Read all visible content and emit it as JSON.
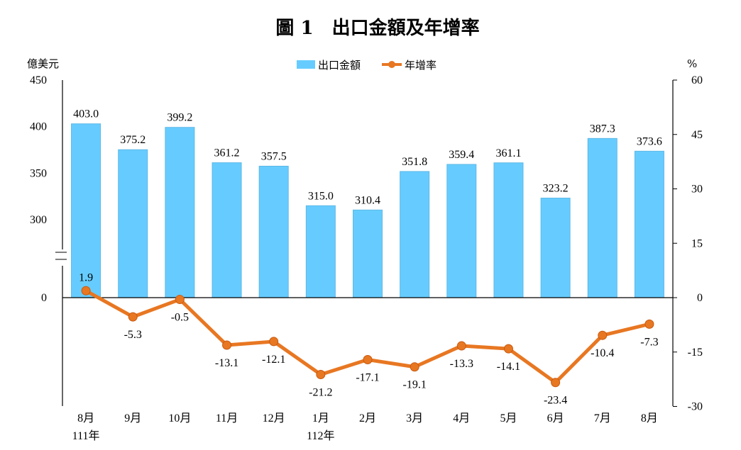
{
  "title": "圖 1　出口金額及年增率",
  "left_unit": "億美元",
  "right_unit": "%",
  "colors": {
    "bar": "#66CCFF",
    "bar_stroke": "#5DB8E6",
    "line": "#E87722",
    "axis": "#000000"
  },
  "chart_data": {
    "type": "bar+line",
    "title": "圖 1　出口金額及年增率",
    "categories": [
      "8月",
      "9月",
      "10月",
      "11月",
      "12月",
      "1月",
      "2月",
      "3月",
      "4月",
      "5月",
      "6月",
      "7月",
      "8月"
    ],
    "category_sublabels": [
      "111年",
      "",
      "",
      "",
      "",
      "112年",
      "",
      "",
      "",
      "",
      "",
      "",
      ""
    ],
    "series": [
      {
        "name": "出口金額",
        "type": "bar",
        "axis": "left",
        "values": [
          403.0,
          375.2,
          399.2,
          361.2,
          357.5,
          315.0,
          310.4,
          351.8,
          359.4,
          361.1,
          323.2,
          387.3,
          373.6
        ],
        "labels": [
          "403.0",
          "375.2",
          "399.2",
          "361.2",
          "357.5",
          "315.0",
          "310.4",
          "351.8",
          "359.4",
          "361.1",
          "323.2",
          "387.3",
          "373.6"
        ]
      },
      {
        "name": "年增率",
        "type": "line",
        "axis": "right",
        "values": [
          1.9,
          -5.3,
          -0.5,
          -13.1,
          -12.1,
          -21.2,
          -17.1,
          -19.1,
          -13.3,
          -14.1,
          -23.4,
          -10.4,
          -7.3
        ],
        "labels": [
          "1.9",
          "-5.3",
          "-0.5",
          "-13.1",
          "-12.1",
          "-21.2",
          "-17.1",
          "-19.1",
          "-13.3",
          "-14.1",
          "-23.4",
          "-10.4",
          "-7.3"
        ]
      }
    ],
    "left_axis": {
      "ticks": [
        0,
        300,
        350,
        400,
        450
      ],
      "tick_labels": [
        "0",
        "300",
        "350",
        "400",
        "450"
      ],
      "broken": true,
      "break_between": [
        0,
        300
      ]
    },
    "right_axis": {
      "ylim": [
        -30,
        60
      ],
      "ticks": [
        -30,
        -15,
        0,
        15,
        30,
        45,
        60
      ],
      "tick_labels": [
        "-30",
        "-15",
        "0",
        "15",
        "30",
        "45",
        "60"
      ]
    },
    "legend": {
      "position": "top-center",
      "entries": [
        "出口金額",
        "年增率"
      ]
    },
    "grid": false
  }
}
